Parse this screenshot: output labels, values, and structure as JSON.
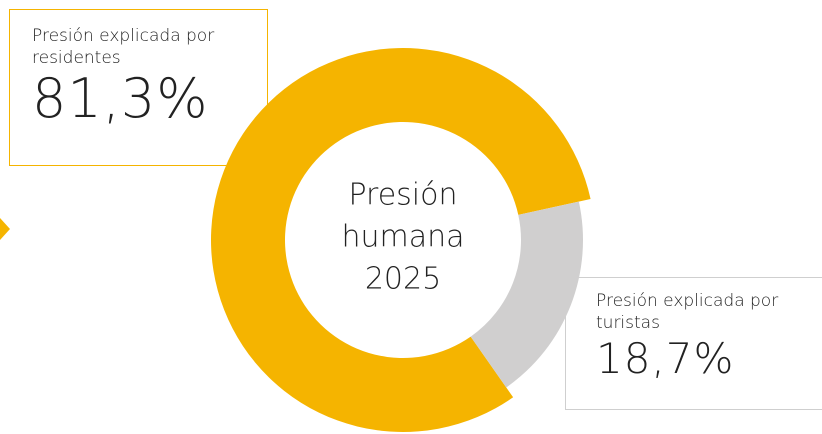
{
  "chart_data": {
    "type": "donut",
    "center_label": [
      "Presión",
      "humana",
      "2025"
    ],
    "categories": [
      "Presión explicada por residentes",
      "Presión explicada por turistas"
    ],
    "values": [
      81.3,
      18.7
    ],
    "value_labels": [
      "81,3%",
      "18,7%"
    ],
    "colors": [
      "#f5b400",
      "#d0cfcf"
    ]
  }
}
